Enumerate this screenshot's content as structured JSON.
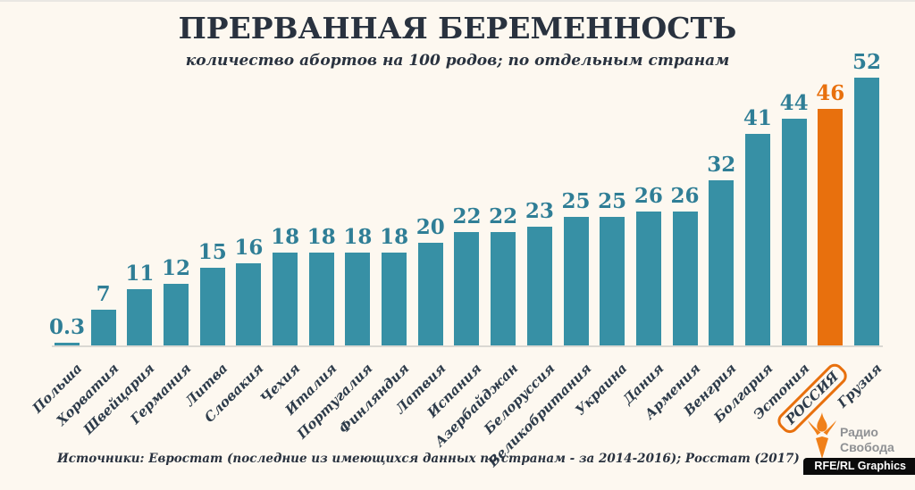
{
  "title": "ПРЕРВАННАЯ БЕРЕМЕННОСТЬ",
  "subtitle": "количество абортов на 100 родов; по отдельным странам",
  "source": "Источники: Евростат (последние из имеющихся данных по странам - за 2014-2016);  Росстат (2017)",
  "logo": {
    "line1": "Радио",
    "line2": "Свобода",
    "badge": "RFE/RL Graphics",
    "torch_color": "#f08019",
    "text_color": "#8f9194"
  },
  "chart_data": {
    "type": "bar",
    "title": "ПРЕРВАННАЯ БЕРЕМЕННОСТЬ",
    "subtitle": "количество абортов на 100 родов; по отдельным странам",
    "xlabel": "",
    "ylabel": "",
    "ylim": [
      0,
      52
    ],
    "grid": false,
    "legend": false,
    "categories": [
      "Польша",
      "Хорватия",
      "Швейцария",
      "Германия",
      "Литва",
      "Словакия",
      "Чехия",
      "Италия",
      "Португалия",
      "Финляндия",
      "Латвия",
      "Испания",
      "Азербайджан",
      "Белоруссия",
      "Великобритания",
      "Украина",
      "Дания",
      "Армения",
      "Венгрия",
      "Болгария",
      "Эстония",
      "РОССИЯ",
      "Грузия"
    ],
    "values": [
      0.3,
      7,
      11,
      12,
      15,
      16,
      18,
      18,
      18,
      18,
      20,
      22,
      22,
      23,
      25,
      25,
      26,
      26,
      32,
      41,
      44,
      46,
      52
    ],
    "highlight_category": "РОССИЯ",
    "highlight_index": 21,
    "bar_color": "#3790a5",
    "highlight_color": "#e8700d",
    "value_label_color": "#2f7e96",
    "axis_label_color": "#2d3b4a",
    "baseline_color": "#dad8d3"
  }
}
